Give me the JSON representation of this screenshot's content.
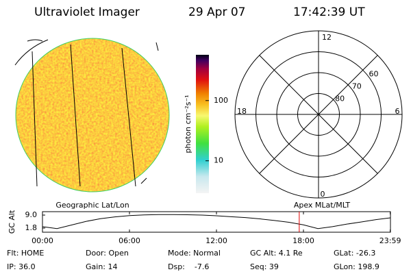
{
  "header": {
    "title": "Ultraviolet Imager",
    "date": "29 Apr 07",
    "time": "17:42:39 UT"
  },
  "image_panel": {
    "label": "Geographic Lat/Lon"
  },
  "colorbar": {
    "label": "photon cm⁻²s⁻¹",
    "scale": "log",
    "lim": [
      2.9,
      575
    ],
    "ticks": [
      10,
      100
    ]
  },
  "polar": {
    "label": "Apex MLat/MLT",
    "lat_lim": [
      50,
      90
    ],
    "lat_ticks": [
      60,
      70,
      80
    ],
    "mlt_labels": {
      "top": "12",
      "right": "6",
      "bottom": "0",
      "left": "18"
    }
  },
  "altitude": {
    "ylabel": "GC Alt",
    "ylim": [
      -0.5,
      10.9
    ],
    "yticks": [
      1.8,
      9.0
    ],
    "yticks_labels": [
      "1.8",
      "9.0"
    ],
    "xlim": [
      0,
      24
    ],
    "xticks": [
      {
        "value": 0,
        "label": "00:00"
      },
      {
        "value": 6,
        "label": "06:00"
      },
      {
        "value": 12,
        "label": "12:00"
      },
      {
        "value": 18,
        "label": "18:00"
      },
      {
        "value": 23.983,
        "label": "23:59"
      }
    ],
    "hours": [
      0,
      1,
      2,
      3,
      4,
      5,
      6,
      7,
      8,
      9,
      10,
      11,
      12,
      13,
      14,
      15,
      16,
      17,
      18,
      19,
      20,
      21,
      22,
      23,
      24
    ],
    "values": [
      2.6,
      1.5,
      3.5,
      5.5,
      7.0,
      8.0,
      8.7,
      9.1,
      9.3,
      9.3,
      9.2,
      9.0,
      8.6,
      8.1,
      7.6,
      6.9,
      6.0,
      5.0,
      3.6,
      1.5,
      2.6,
      4.0,
      5.2,
      6.5,
      7.5
    ],
    "current_time": 17.71,
    "current_color": "#e00000"
  },
  "info": {
    "rows": [
      [
        "Flt: HOME",
        "Door: Open",
        "Mode: Normal",
        "GC Alt: 4.1 Re",
        "GLat: -26.3"
      ],
      [
        "IP: 36.0",
        "Gain: 14",
        "Dsp:    -7.6",
        "Seq: 39",
        "GLon: 198.9"
      ]
    ]
  }
}
